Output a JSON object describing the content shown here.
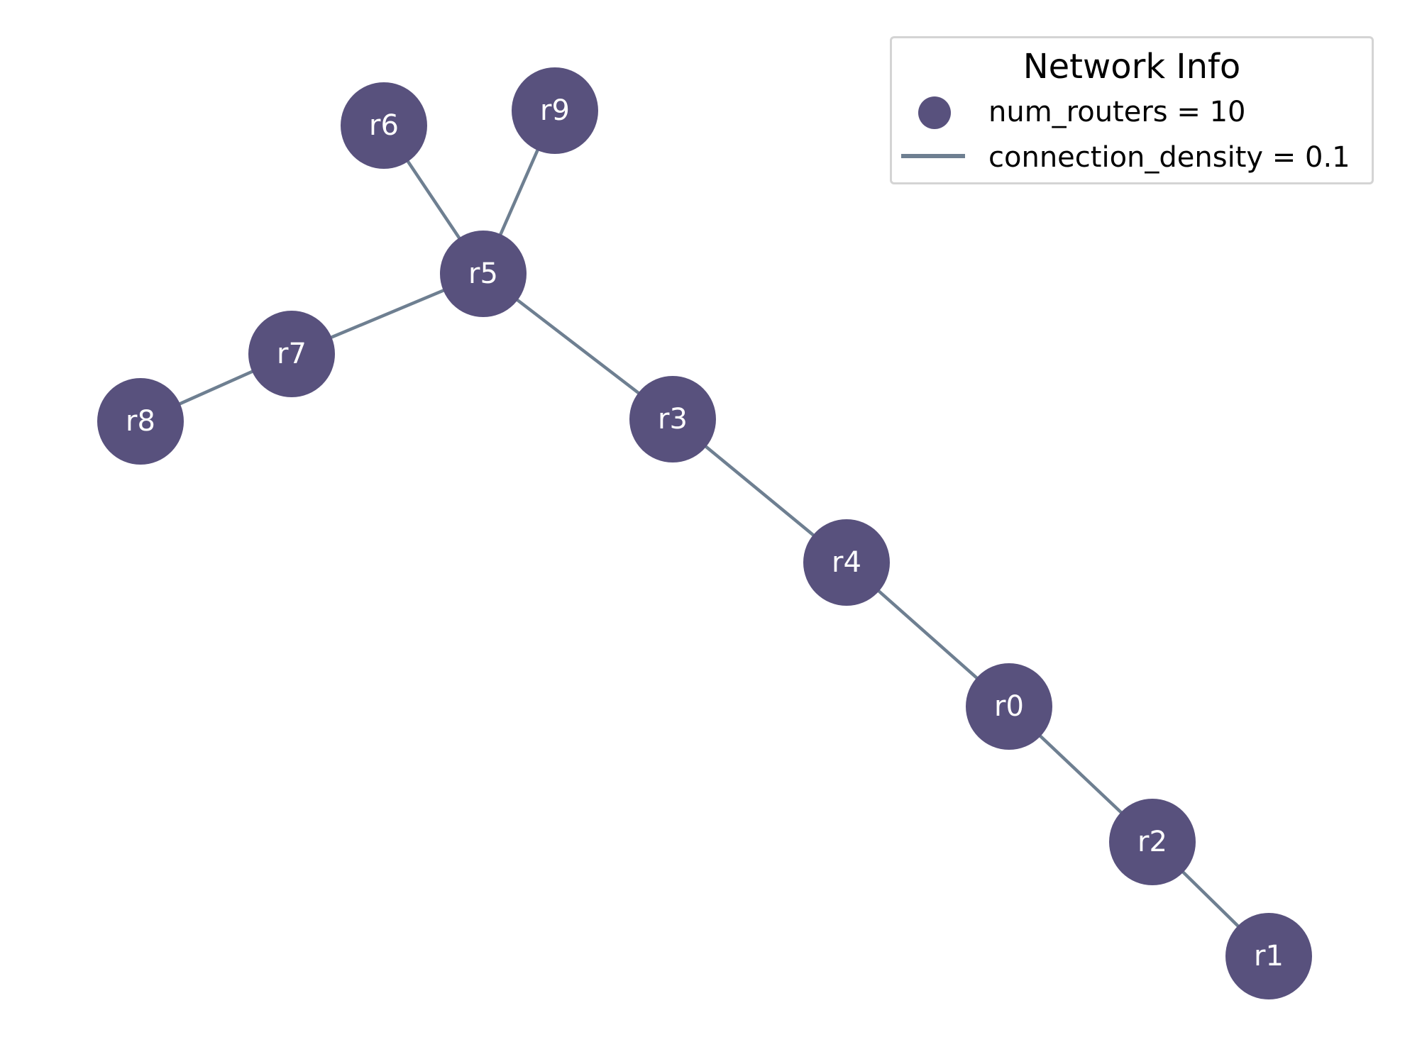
{
  "graph": {
    "nodes": [
      {
        "id": "r0",
        "label": "r0"
      },
      {
        "id": "r1",
        "label": "r1"
      },
      {
        "id": "r2",
        "label": "r2"
      },
      {
        "id": "r3",
        "label": "r3"
      },
      {
        "id": "r4",
        "label": "r4"
      },
      {
        "id": "r5",
        "label": "r5"
      },
      {
        "id": "r6",
        "label": "r6"
      },
      {
        "id": "r7",
        "label": "r7"
      },
      {
        "id": "r8",
        "label": "r8"
      },
      {
        "id": "r9",
        "label": "r9"
      }
    ],
    "edges": [
      [
        "r6",
        "r5"
      ],
      [
        "r9",
        "r5"
      ],
      [
        "r5",
        "r7"
      ],
      [
        "r7",
        "r8"
      ],
      [
        "r5",
        "r3"
      ],
      [
        "r3",
        "r4"
      ],
      [
        "r4",
        "r0"
      ],
      [
        "r0",
        "r2"
      ],
      [
        "r2",
        "r1"
      ]
    ]
  },
  "legend": {
    "title": "Network Info",
    "items": [
      {
        "label": "num_routers = 10",
        "marker": "circle"
      },
      {
        "label": "connection_density = 0.1",
        "marker": "line"
      }
    ]
  },
  "colors": {
    "node_fill": "#58517d",
    "node_label": "#ffffff",
    "edge": "#6e7f91",
    "legend_border": "#d4d4d4"
  }
}
